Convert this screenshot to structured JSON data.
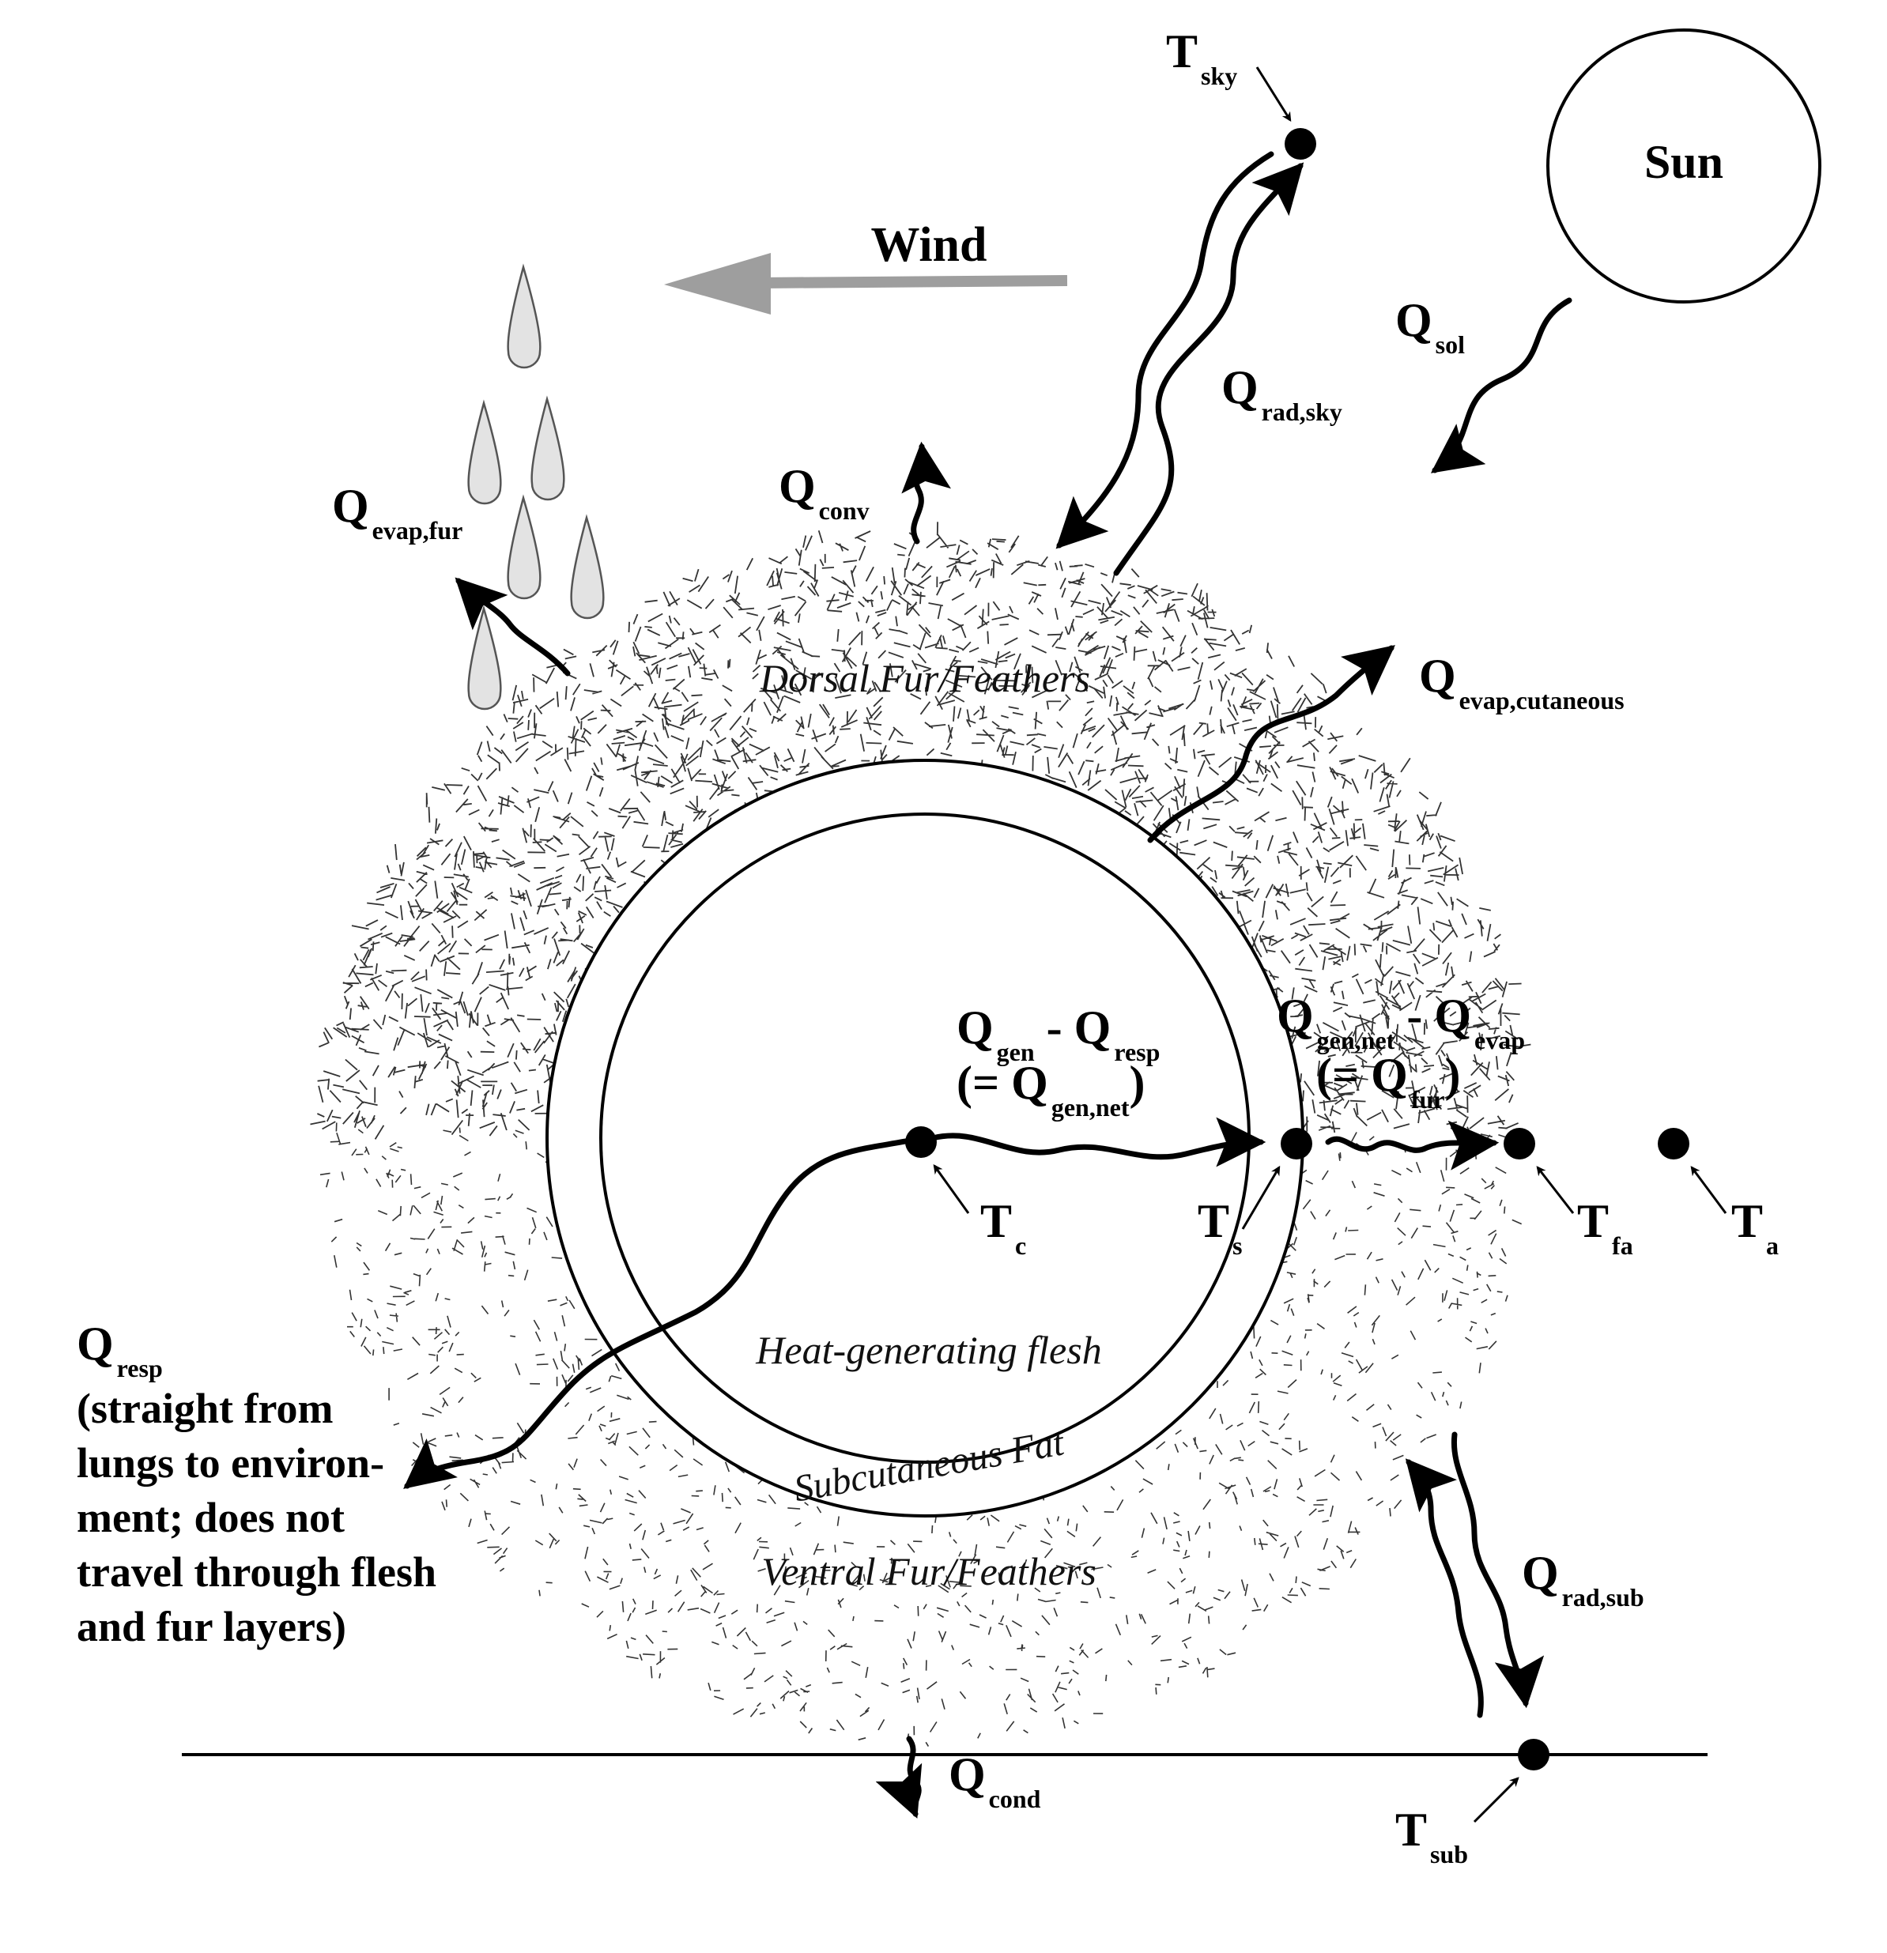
{
  "colors": {
    "ink": "#000000",
    "wind_arrow": "#9e9e9e",
    "drop_fill": "#e3e3e3",
    "drop_stroke": "#555555",
    "hatch": "#333333"
  },
  "sun": {
    "label": "Sun"
  },
  "wind": {
    "label": "Wind"
  },
  "layers": {
    "dorsal": "Dorsal Fur/Feathers",
    "ventral": "Ventral Fur/Feathers",
    "flesh": "Heat-generating flesh",
    "fat": "Subcutaneous Fat"
  },
  "temps": {
    "sky": {
      "main": "T",
      "sub": "sky"
    },
    "core": {
      "main": "T",
      "sub": "c"
    },
    "skin": {
      "main": "T",
      "sub": "s"
    },
    "fur_air": {
      "main": "T",
      "sub": "fa"
    },
    "air": {
      "main": "T",
      "sub": "a"
    },
    "substrate": {
      "main": "T",
      "sub": "sub"
    }
  },
  "fluxes": {
    "sol": {
      "main": "Q",
      "sub": "sol"
    },
    "rad_sky": {
      "main": "Q",
      "sub": "rad,sky"
    },
    "conv": {
      "main": "Q",
      "sub": "conv"
    },
    "evap_fur": {
      "main": "Q",
      "sub": "evap,fur"
    },
    "evap_cut": {
      "main": "Q",
      "sub": "evap,cutaneous"
    },
    "rad_sub": {
      "main": "Q",
      "sub": "rad,sub"
    },
    "cond": {
      "main": "Q",
      "sub": "cond"
    },
    "gen_minus_resp": {
      "q1": "Q",
      "s1": "gen",
      "minus": " - ",
      "q2": "Q",
      "s2": "resp",
      "eq_open": "(= Q",
      "eq_sub": "gen,net",
      "eq_close": ")"
    },
    "gen_net_minus_evap": {
      "q1": "Q",
      "s1": "gen,net",
      "minus": " - ",
      "q2": "Q",
      "s2": "evap",
      "eq_open": "(= Q",
      "eq_sub": "fur",
      "eq_close": ")"
    },
    "resp": {
      "main": "Q",
      "sub": "resp",
      "note": [
        "(straight from",
        "lungs to environ-",
        "ment; does not",
        "travel through flesh",
        "and fur layers)"
      ]
    }
  }
}
